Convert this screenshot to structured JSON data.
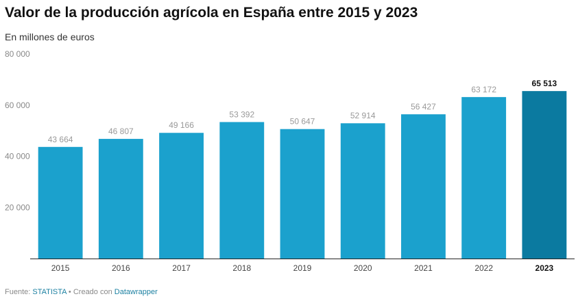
{
  "chart_data": {
    "type": "bar",
    "title": "Valor de la producción agrícola en España entre 2015 y 2023",
    "subtitle": "En millones de euros",
    "categories": [
      "2015",
      "2016",
      "2017",
      "2018",
      "2019",
      "2020",
      "2021",
      "2022",
      "2023"
    ],
    "values": [
      43664,
      46807,
      49166,
      53392,
      50647,
      52914,
      56427,
      63172,
      65513
    ],
    "value_labels": [
      "43 664",
      "46 807",
      "49 166",
      "53 392",
      "50 647",
      "52 914",
      "56 427",
      "63 172",
      "65 513"
    ],
    "highlight_index": 8,
    "ylim": [
      0,
      80000
    ],
    "yticks": [
      20000,
      40000,
      60000,
      80000
    ],
    "ytick_labels": [
      "20 000",
      "40 000",
      "60 000",
      "80 000"
    ],
    "xlabel": "",
    "ylabel": "",
    "grid": false,
    "colors": {
      "bar": "#1ba1cd",
      "highlight": "#0b7aa0",
      "value_label": "#999999",
      "highlight_label": "#111111",
      "tick_label": "#888888",
      "axis": "#222222"
    }
  },
  "footer": {
    "source_prefix": "Fuente: ",
    "source_name": "STATISTA",
    "separator": " • Creado con ",
    "tool_name": "Datawrapper"
  }
}
